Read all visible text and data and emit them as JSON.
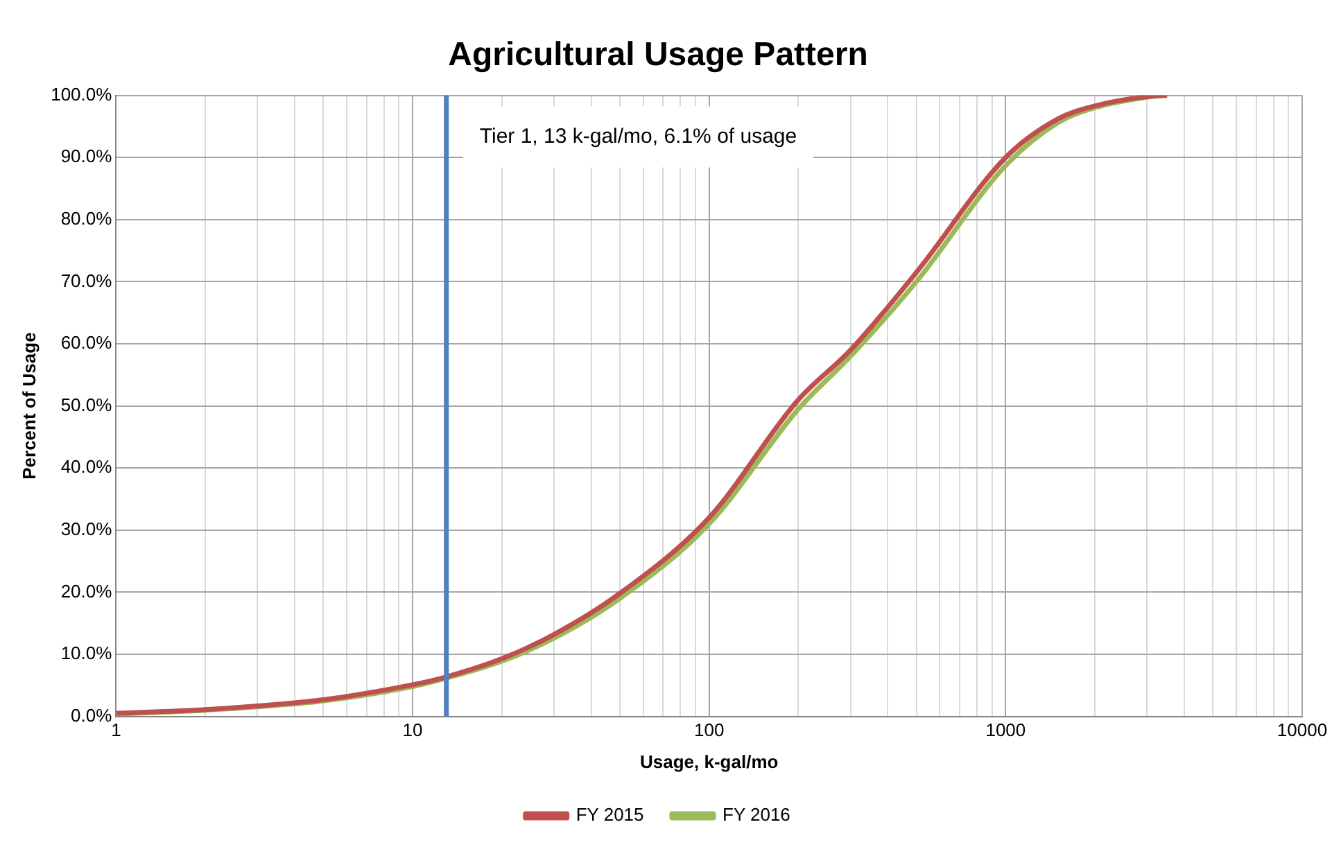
{
  "chart_data": {
    "type": "line",
    "title": "Agricultural Usage Pattern",
    "xlabel": "Usage, k-gal/mo",
    "ylabel": "Percent of Usage",
    "x": [
      1,
      2,
      5,
      10,
      12.6,
      20,
      30,
      50,
      100,
      200,
      300,
      500,
      1000,
      1500,
      2000,
      3000,
      3500
    ],
    "series": [
      {
        "name": "FY 2015",
        "color": "#c0504d",
        "values": [
          0.5,
          1.1,
          2.7,
          5.1,
          6.2,
          9.3,
          13.2,
          19.8,
          32,
          51,
          59,
          71.5,
          90,
          96.2,
          98.3,
          99.8,
          100
        ]
      },
      {
        "name": "FY 2016",
        "color": "#9bbb59",
        "values": [
          0.4,
          1.0,
          2.5,
          4.8,
          6.0,
          8.9,
          12.6,
          19,
          31,
          49.5,
          58,
          70,
          88.7,
          95.6,
          98,
          99.7,
          100
        ]
      }
    ],
    "log": "x",
    "xlim": [
      1,
      10000
    ],
    "xticks": [
      1,
      10,
      100,
      1000,
      10000
    ],
    "ylim": [
      0,
      100
    ],
    "yticks": [
      {
        "value": 0,
        "label": "0.0%"
      },
      {
        "value": 10,
        "label": "10.0%"
      },
      {
        "value": 20,
        "label": "20.0%"
      },
      {
        "value": 30,
        "label": "30.0%"
      },
      {
        "value": 40,
        "label": "40.0%"
      },
      {
        "value": 50,
        "label": "50.0%"
      },
      {
        "value": 60,
        "label": "60.0%"
      },
      {
        "value": 70,
        "label": "70.0%"
      },
      {
        "value": 80,
        "label": "80.0%"
      },
      {
        "value": 90,
        "label": "90.0%"
      },
      {
        "value": 100,
        "label": "100.0%"
      }
    ],
    "ref_lines": [
      {
        "axis": "x",
        "value": 13,
        "label": "Tier 1, 13 k-gal/mo, 6.1% of usage",
        "color": "#4f81bd"
      }
    ],
    "grid": true,
    "legend": "bottom",
    "marker": "none",
    "line_style": "solid"
  }
}
